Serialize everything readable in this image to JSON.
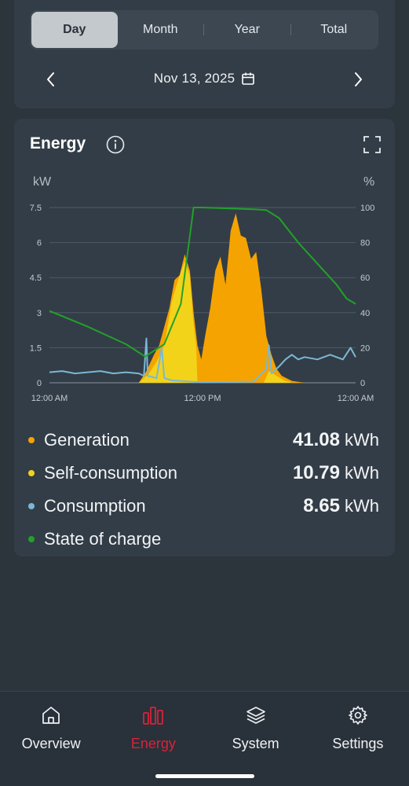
{
  "period_tabs": [
    {
      "label": "Day",
      "active": true
    },
    {
      "label": "Month",
      "active": false
    },
    {
      "label": "Year",
      "active": false
    },
    {
      "label": "Total",
      "active": false
    }
  ],
  "date_nav": {
    "date": "Nov 13, 2025",
    "prev_icon": "chevron-left-icon",
    "next_icon": "chevron-right-icon",
    "calendar_icon": "calendar-icon"
  },
  "energy": {
    "title": "Energy",
    "left_unit": "kW",
    "right_unit": "%"
  },
  "legend": [
    {
      "label": "Generation",
      "value": "41.08",
      "unit": "kWh",
      "color": "#f5a300"
    },
    {
      "label": "Self-consumption",
      "value": "10.79",
      "unit": "kWh",
      "color": "#f2d31a"
    },
    {
      "label": "Consumption",
      "value": "8.65",
      "unit": "kWh",
      "color": "#7ab8d6"
    },
    {
      "label": "State of charge",
      "value": "",
      "unit": "",
      "color": "#22a12a"
    }
  ],
  "chart_data": {
    "type": "area",
    "x": [
      "12:00 AM",
      "12:00 PM",
      "12:00 AM"
    ],
    "left_axis": {
      "label": "kW",
      "ticks": [
        "0",
        "1.5",
        "3",
        "4.5",
        "6",
        "7.5"
      ],
      "range": [
        0,
        7.5
      ]
    },
    "right_axis": {
      "label": "%",
      "ticks": [
        "0",
        "20",
        "40",
        "60",
        "80",
        "100"
      ],
      "range": [
        0,
        100
      ]
    },
    "grid": true,
    "series": [
      {
        "name": "Generation",
        "axis": "left",
        "color": "#f5a300",
        "points": [
          [
            0,
            0
          ],
          [
            7.0,
            0
          ],
          [
            7.6,
            0.5
          ],
          [
            8.2,
            1.2
          ],
          [
            8.6,
            1.6
          ],
          [
            9.0,
            2.4
          ],
          [
            9.4,
            3.2
          ],
          [
            9.8,
            4.4
          ],
          [
            10.2,
            4.6
          ],
          [
            10.6,
            5.5
          ],
          [
            11.0,
            4.8
          ],
          [
            11.3,
            3.0
          ],
          [
            11.6,
            1.6
          ],
          [
            11.9,
            1.0
          ],
          [
            12.2,
            2.0
          ],
          [
            12.6,
            3.2
          ],
          [
            13.0,
            4.8
          ],
          [
            13.4,
            5.4
          ],
          [
            13.8,
            4.2
          ],
          [
            14.2,
            6.5
          ],
          [
            14.6,
            7.25
          ],
          [
            15.0,
            6.3
          ],
          [
            15.4,
            6.2
          ],
          [
            15.8,
            5.3
          ],
          [
            16.2,
            5.6
          ],
          [
            16.6,
            4.0
          ],
          [
            17.0,
            2.0
          ],
          [
            17.4,
            1.2
          ],
          [
            17.8,
            0.6
          ],
          [
            18.2,
            0.3
          ],
          [
            19.0,
            0.08
          ],
          [
            20.0,
            0
          ],
          [
            24,
            0
          ]
        ]
      },
      {
        "name": "Self-consumption",
        "axis": "left",
        "color": "#f2d31a",
        "points": [
          [
            0,
            0
          ],
          [
            7.0,
            0
          ],
          [
            7.8,
            0.4
          ],
          [
            8.4,
            0.9
          ],
          [
            9.0,
            1.6
          ],
          [
            9.6,
            3.5
          ],
          [
            10.2,
            4.6
          ],
          [
            10.6,
            5.2
          ],
          [
            11.0,
            4.6
          ],
          [
            11.3,
            2.5
          ],
          [
            11.5,
            1.6
          ],
          [
            11.6,
            0
          ],
          [
            16.8,
            0
          ],
          [
            17.2,
            0.5
          ],
          [
            17.8,
            0.3
          ],
          [
            18.4,
            0.1
          ],
          [
            19.0,
            0
          ],
          [
            24,
            0
          ]
        ]
      },
      {
        "name": "Consumption",
        "axis": "left",
        "color": "#7ab8d6",
        "points": [
          [
            0,
            0.45
          ],
          [
            1,
            0.5
          ],
          [
            2,
            0.4
          ],
          [
            3,
            0.45
          ],
          [
            4,
            0.5
          ],
          [
            5,
            0.4
          ],
          [
            6,
            0.45
          ],
          [
            7,
            0.4
          ],
          [
            7.4,
            0.3
          ],
          [
            7.6,
            1.9
          ],
          [
            7.7,
            0.3
          ],
          [
            8.4,
            0.2
          ],
          [
            8.8,
            1.5
          ],
          [
            9.0,
            0.2
          ],
          [
            9.6,
            0.1
          ],
          [
            12,
            0.02
          ],
          [
            16,
            0.05
          ],
          [
            17.0,
            0.6
          ],
          [
            17.2,
            1.6
          ],
          [
            17.4,
            0.4
          ],
          [
            18.0,
            0.7
          ],
          [
            18.5,
            1.0
          ],
          [
            19.0,
            1.2
          ],
          [
            19.5,
            1.0
          ],
          [
            20.0,
            1.1
          ],
          [
            21.0,
            1.0
          ],
          [
            22.0,
            1.2
          ],
          [
            23.0,
            1.0
          ],
          [
            23.6,
            1.5
          ],
          [
            24,
            1.1
          ]
        ]
      },
      {
        "name": "State of charge",
        "axis": "right",
        "color": "#22a12a",
        "points": [
          [
            0,
            41
          ],
          [
            3,
            32
          ],
          [
            6,
            22
          ],
          [
            7.5,
            15
          ],
          [
            9.0,
            22
          ],
          [
            10.3,
            45
          ],
          [
            11.3,
            100
          ],
          [
            12.0,
            100
          ],
          [
            14.0,
            99.5
          ],
          [
            16.0,
            99
          ],
          [
            17.0,
            98.5
          ],
          [
            18.0,
            94
          ],
          [
            19.5,
            80
          ],
          [
            21.0,
            68
          ],
          [
            22.5,
            56
          ],
          [
            23.3,
            48
          ],
          [
            24,
            45
          ]
        ]
      }
    ]
  },
  "bottom_nav": [
    {
      "label": "Overview",
      "icon": "home-icon",
      "active": false
    },
    {
      "label": "Energy",
      "icon": "bar-chart-icon",
      "active": true
    },
    {
      "label": "System",
      "icon": "layers-icon",
      "active": false
    },
    {
      "label": "Settings",
      "icon": "gear-icon",
      "active": false
    }
  ]
}
